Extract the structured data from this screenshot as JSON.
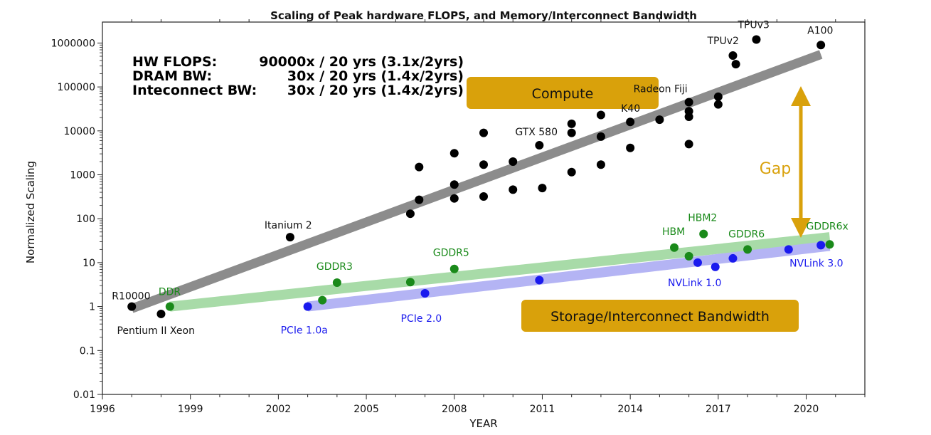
{
  "chart_data": {
    "type": "scatter",
    "title": "Scaling of Peak hardware FLOPS, and Memory/Interconnect Bandwidth",
    "xlabel": "YEAR",
    "ylabel": "Normalized Scaling",
    "xlim": [
      1996,
      2022
    ],
    "ylim": [
      0.01,
      3000000
    ],
    "yscale": "log",
    "x_ticks": [
      1996,
      1999,
      2002,
      2005,
      2008,
      2011,
      2014,
      2017,
      2020
    ],
    "y_ticks": [
      0.01,
      0.1,
      1,
      10,
      100,
      1000,
      10000,
      100000,
      1000000
    ],
    "y_tick_labels": [
      "0.01",
      "0.1",
      "1",
      "10",
      "100",
      "1000",
      "10000",
      "100000",
      "1000000"
    ],
    "grid": false,
    "series": [
      {
        "name": "HW FLOPS",
        "color": "#000000",
        "trend": {
          "x": [
            1997.0,
            2020.5
          ],
          "y": [
            0.9,
            550000
          ],
          "color": "#8c8c8c"
        },
        "points": [
          {
            "x": 1997.0,
            "y": 1,
            "label": "R10000"
          },
          {
            "x": 1998.0,
            "y": 0.68,
            "label": "Pentium II Xeon"
          },
          {
            "x": 2002.4,
            "y": 38,
            "label": "Itanium 2"
          },
          {
            "x": 2006.5,
            "y": 130
          },
          {
            "x": 2006.8,
            "y": 1500
          },
          {
            "x": 2006.8,
            "y": 270
          },
          {
            "x": 2008.0,
            "y": 3100
          },
          {
            "x": 2008.0,
            "y": 600
          },
          {
            "x": 2008.0,
            "y": 290
          },
          {
            "x": 2009.0,
            "y": 9000
          },
          {
            "x": 2009.0,
            "y": 1700
          },
          {
            "x": 2009.0,
            "y": 320
          },
          {
            "x": 2010.0,
            "y": 2000
          },
          {
            "x": 2010.0,
            "y": 460
          },
          {
            "x": 2010.9,
            "y": 4700,
            "label": "GTX 580"
          },
          {
            "x": 2011.0,
            "y": 500
          },
          {
            "x": 2012.0,
            "y": 14500
          },
          {
            "x": 2012.0,
            "y": 9000
          },
          {
            "x": 2012.0,
            "y": 1150
          },
          {
            "x": 2013.0,
            "y": 23000
          },
          {
            "x": 2013.0,
            "y": 7400
          },
          {
            "x": 2013.0,
            "y": 1700
          },
          {
            "x": 2014.0,
            "y": 16000,
            "label": "K40"
          },
          {
            "x": 2014.0,
            "y": 4100
          },
          {
            "x": 2015.0,
            "y": 18000
          },
          {
            "x": 2016.0,
            "y": 45000,
            "label": "Radeon Fiji"
          },
          {
            "x": 2016.0,
            "y": 28000
          },
          {
            "x": 2016.0,
            "y": 21000
          },
          {
            "x": 2016.0,
            "y": 5000
          },
          {
            "x": 2017.0,
            "y": 60000
          },
          {
            "x": 2017.0,
            "y": 40000
          },
          {
            "x": 2017.5,
            "y": 520000,
            "label": "TPUv2"
          },
          {
            "x": 2017.6,
            "y": 330000
          },
          {
            "x": 2018.3,
            "y": 1200000,
            "label": "TPUv3"
          },
          {
            "x": 2020.5,
            "y": 900000,
            "label": "A100"
          }
        ]
      },
      {
        "name": "DRAM BW",
        "color": "#1a8a1a",
        "trend": {
          "x": [
            1998.3,
            2020.8
          ],
          "y": [
            1.0,
            38
          ],
          "color": "#a8dba8"
        },
        "points": [
          {
            "x": 1998.3,
            "y": 1.0,
            "label": "DDR"
          },
          {
            "x": 2003.5,
            "y": 1.4
          },
          {
            "x": 2004.0,
            "y": 3.5,
            "label": "GDDR3"
          },
          {
            "x": 2006.5,
            "y": 3.6
          },
          {
            "x": 2008.0,
            "y": 7.2,
            "label": "GDDR5"
          },
          {
            "x": 2015.5,
            "y": 22,
            "label": "HBM"
          },
          {
            "x": 2016.0,
            "y": 14
          },
          {
            "x": 2016.5,
            "y": 45,
            "label": "HBM2"
          },
          {
            "x": 2018.0,
            "y": 20,
            "label": "GDDR6"
          },
          {
            "x": 2020.8,
            "y": 26,
            "label": "GDDR6x"
          }
        ]
      },
      {
        "name": "Inteconnect BW",
        "color": "#1a1aee",
        "trend": {
          "x": [
            2003.0,
            2020.8
          ],
          "y": [
            1.0,
            24
          ],
          "color": "#b4b4f4"
        },
        "points": [
          {
            "x": 2003.0,
            "y": 1.0,
            "label": "PCIe 1.0a"
          },
          {
            "x": 2007.0,
            "y": 2.0,
            "label": "PCIe 2.0"
          },
          {
            "x": 2010.9,
            "y": 4.0
          },
          {
            "x": 2016.3,
            "y": 10,
            "label": "NVLink 1.0"
          },
          {
            "x": 2016.9,
            "y": 8.0
          },
          {
            "x": 2017.5,
            "y": 12.5
          },
          {
            "x": 2019.4,
            "y": 20
          },
          {
            "x": 2020.5,
            "y": 25,
            "label": "NVLink 3.0"
          }
        ]
      }
    ],
    "legend": [
      {
        "name": "HW FLOPS:",
        "value": "90000x / 20 yrs (3.1x/2yrs)",
        "color": "#000000"
      },
      {
        "name": "DRAM BW:",
        "value": "30x / 20 yrs (1.4x/2yrs)",
        "color": "#1a8a1a"
      },
      {
        "name": "Inteconnect BW:",
        "value": "30x / 20 yrs (1.4x/2yrs)",
        "color": "#1a1aee"
      }
    ],
    "annotations": {
      "compute_box": "Compute",
      "bandwidth_box": "Storage/Interconnect Bandwidth",
      "gap_label": "Gap",
      "accent_color": "#d9a10b"
    }
  }
}
